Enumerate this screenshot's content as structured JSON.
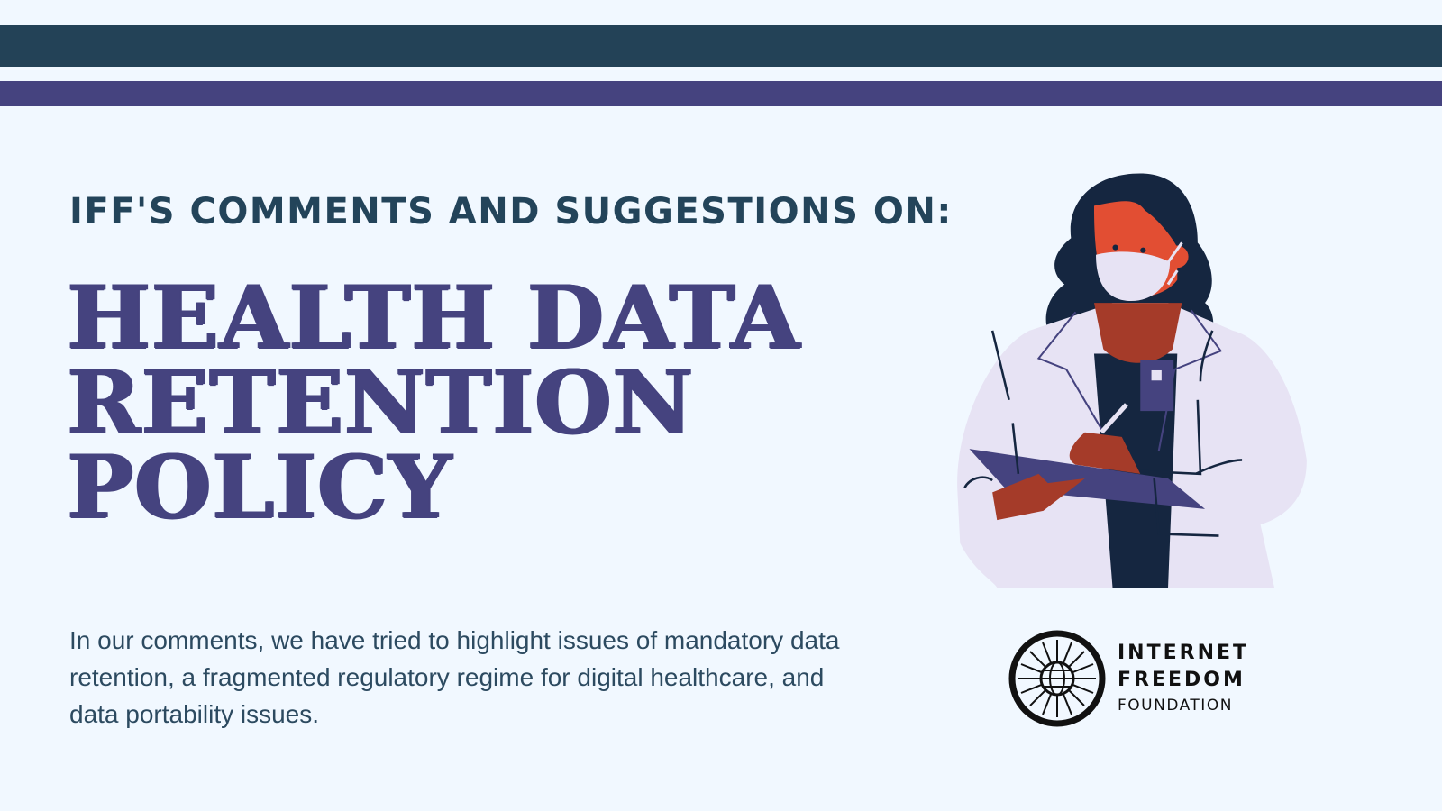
{
  "colors": {
    "background": "#f1f8ff",
    "top_bar": "#234257",
    "accent_bar": "#45437f",
    "subtitle": "#23445a",
    "title": "#45437f",
    "body_text": "#2c4a60"
  },
  "header": {
    "subtitle": "IFF'S COMMENTS AND SUGGESTIONS ON:"
  },
  "title": {
    "lines": [
      "HEALTH DATA",
      "RETENTION",
      "POLICY"
    ]
  },
  "body": {
    "text": "In our comments, we have tried to highlight issues of mandatory data retention, a fragmented regulatory regime for digital healthcare, and data portability issues."
  },
  "illustration": {
    "icon": "masked-doctor-with-clipboard-illustration"
  },
  "logo": {
    "icon": "chakra-globe-logo",
    "lines": [
      "INTERNET",
      "FREEDOM",
      "FOUNDATION"
    ]
  }
}
